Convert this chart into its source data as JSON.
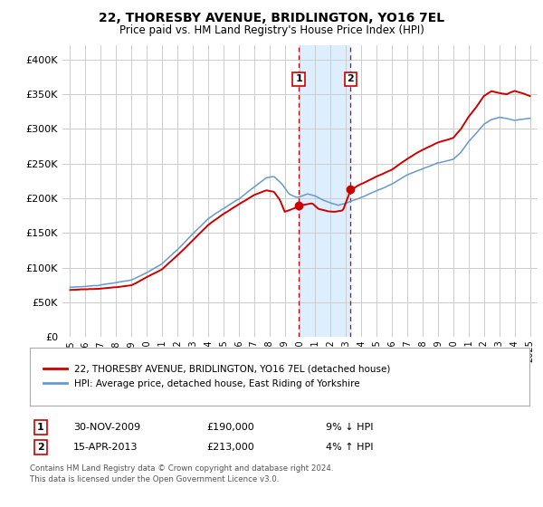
{
  "title": "22, THORESBY AVENUE, BRIDLINGTON, YO16 7EL",
  "subtitle": "Price paid vs. HM Land Registry's House Price Index (HPI)",
  "ylim": [
    0,
    420000
  ],
  "yticks": [
    0,
    50000,
    100000,
    150000,
    200000,
    250000,
    300000,
    350000,
    400000
  ],
  "ytick_labels": [
    "£0",
    "£50K",
    "£100K",
    "£150K",
    "£200K",
    "£250K",
    "£300K",
    "£350K",
    "£400K"
  ],
  "xlim_min": 1994.5,
  "xlim_max": 2025.5,
  "sale1_date": 2009.917,
  "sale1_price": 190000,
  "sale1_text": "30-NOV-2009",
  "sale1_amount": "£190,000",
  "sale1_pct": "9% ↓ HPI",
  "sale2_date": 2013.292,
  "sale2_price": 213000,
  "sale2_text": "15-APR-2013",
  "sale2_amount": "£213,000",
  "sale2_pct": "4% ↑ HPI",
  "red_line_color": "#cc0000",
  "blue_line_color": "#6699cc",
  "shade_color": "#ddeeff",
  "vline_color": "#cc0000",
  "grid_color": "#cccccc",
  "background_color": "#ffffff",
  "legend_label1": "22, THORESBY AVENUE, BRIDLINGTON, YO16 7EL (detached house)",
  "legend_label2": "HPI: Average price, detached house, East Riding of Yorkshire",
  "footnote1": "Contains HM Land Registry data © Crown copyright and database right 2024.",
  "footnote2": "This data is licensed under the Open Government Licence v3.0."
}
